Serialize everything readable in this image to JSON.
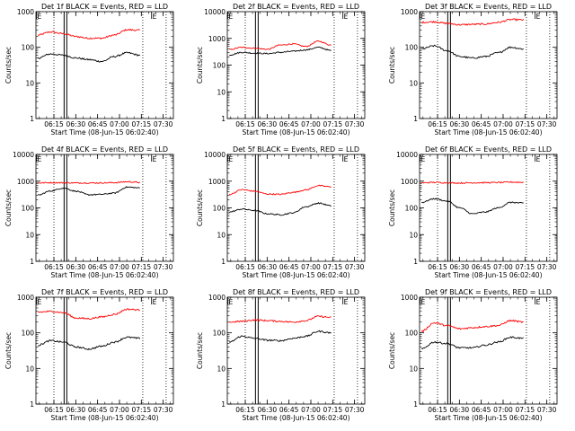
{
  "chart_data": [
    {
      "type": "line",
      "title": "Det 1f BLACK = Events, RED = LLD",
      "xlabel": "Start Time (08-Jun-15 06:02:40)",
      "ylabel": "Counts/sec",
      "yscale": "log",
      "ylim": [
        1,
        1000
      ],
      "x_ticks": [
        "06:15",
        "06:30",
        "06:45",
        "07:00",
        "07:15",
        "07:30"
      ],
      "y_ticks": [
        "1",
        "10",
        "100",
        "1000"
      ],
      "markers": {
        "dotted": [
          "06:15",
          "07:16",
          "07:32"
        ],
        "thick": [
          "06:22"
        ],
        "E_labels": [
          "06:03",
          "07:22"
        ]
      },
      "series": [
        {
          "color": "#ff0000",
          "values": [
            220,
            270,
            240,
            200,
            180,
            180,
            220,
            310,
            300
          ]
        },
        {
          "color": "#000000",
          "values": [
            50,
            65,
            60,
            50,
            45,
            40,
            55,
            70,
            60
          ]
        }
      ]
    },
    {
      "type": "line",
      "title": "Det 2f BLACK = Events, RED = LLD",
      "xlabel": "Start Time (08-Jun-15 06:02:40)",
      "ylabel": "Counts/sec",
      "yscale": "log",
      "ylim": [
        1,
        10000
      ],
      "x_ticks": [
        "06:15",
        "06:30",
        "06:45",
        "07:00",
        "07:15",
        "07:30"
      ],
      "y_ticks": [
        "1",
        "10",
        "100",
        "1000",
        "10000"
      ],
      "markers": {
        "dotted": [
          "06:15",
          "07:16",
          "07:32"
        ],
        "thick": [
          "06:22"
        ],
        "E_labels": [
          "06:03",
          "07:22"
        ]
      },
      "series": [
        {
          "color": "#ff0000",
          "values": [
            380,
            460,
            430,
            390,
            560,
            620,
            500,
            780,
            560
          ]
        },
        {
          "color": "#000000",
          "values": [
            240,
            300,
            280,
            270,
            300,
            330,
            370,
            460,
            350
          ]
        }
      ]
    },
    {
      "type": "line",
      "title": "Det 3f BLACK = Events, RED = LLD",
      "xlabel": "Start Time (08-Jun-15 06:02:40)",
      "ylabel": "Counts/sec",
      "yscale": "log",
      "ylim": [
        1,
        1000
      ],
      "x_ticks": [
        "06:15",
        "06:30",
        "06:45",
        "07:00",
        "07:15",
        "07:30"
      ],
      "y_ticks": [
        "1",
        "10",
        "100",
        "1000"
      ],
      "markers": {
        "dotted": [
          "06:15",
          "07:16",
          "07:32"
        ],
        "thick": [
          "06:22"
        ],
        "E_labels": [
          "06:03",
          "07:22"
        ]
      },
      "series": [
        {
          "color": "#ff0000",
          "values": [
            500,
            520,
            470,
            430,
            440,
            450,
            500,
            600,
            590
          ]
        },
        {
          "color": "#000000",
          "values": [
            90,
            110,
            80,
            55,
            50,
            55,
            70,
            100,
            90
          ]
        }
      ]
    },
    {
      "type": "line",
      "title": "Det 4f BLACK = Events, RED = LLD",
      "xlabel": "Start Time (08-Jun-15 06:02:40)",
      "ylabel": "Counts/sec",
      "yscale": "log",
      "ylim": [
        1,
        10000
      ],
      "x_ticks": [
        "06:15",
        "06:30",
        "06:45",
        "07:00",
        "07:15",
        "07:30"
      ],
      "y_ticks": [
        "1",
        "10",
        "100",
        "1000",
        "10000"
      ],
      "markers": {
        "dotted": [
          "06:15",
          "07:16",
          "07:32"
        ],
        "thick": [
          "06:22"
        ],
        "E_labels": [
          "06:03",
          "07:22"
        ]
      },
      "series": [
        {
          "color": "#ff0000",
          "values": [
            860,
            880,
            870,
            860,
            860,
            860,
            880,
            950,
            900
          ]
        },
        {
          "color": "#000000",
          "values": [
            300,
            430,
            550,
            420,
            310,
            320,
            360,
            600,
            560
          ]
        }
      ]
    },
    {
      "type": "line",
      "title": "Det 5f BLACK = Events, RED = LLD",
      "xlabel": "Start Time (08-Jun-15 06:02:40)",
      "ylabel": "Counts/sec",
      "yscale": "log",
      "ylim": [
        1,
        10000
      ],
      "x_ticks": [
        "06:15",
        "06:30",
        "06:45",
        "07:00",
        "07:15",
        "07:30"
      ],
      "y_ticks": [
        "1",
        "10",
        "100",
        "1000",
        "10000"
      ],
      "markers": {
        "dotted": [
          "06:15",
          "07:16",
          "07:32"
        ],
        "thick": [
          "06:22"
        ],
        "E_labels": [
          "06:03",
          "07:22"
        ]
      },
      "series": [
        {
          "color": "#ff0000",
          "values": [
            320,
            480,
            420,
            330,
            320,
            380,
            470,
            680,
            610
          ]
        },
        {
          "color": "#000000",
          "values": [
            70,
            90,
            80,
            60,
            55,
            65,
            110,
            150,
            120
          ]
        }
      ]
    },
    {
      "type": "line",
      "title": "Det 6f BLACK = Events, RED = LLD",
      "xlabel": "Start Time (08-Jun-15 06:02:40)",
      "ylabel": "Counts/sec",
      "yscale": "log",
      "ylim": [
        1,
        10000
      ],
      "x_ticks": [
        "06:15",
        "06:30",
        "06:45",
        "07:00",
        "07:15",
        "07:30"
      ],
      "y_ticks": [
        "1",
        "10",
        "100",
        "1000",
        "10000"
      ],
      "markers": {
        "dotted": [
          "06:15",
          "07:16",
          "07:32"
        ],
        "thick": [
          "06:22"
        ],
        "E_labels": [
          "06:03",
          "07:22"
        ]
      },
      "series": [
        {
          "color": "#ff0000",
          "values": [
            860,
            900,
            870,
            850,
            870,
            880,
            890,
            920,
            900
          ]
        },
        {
          "color": "#000000",
          "values": [
            160,
            220,
            180,
            100,
            60,
            70,
            100,
            160,
            150
          ]
        }
      ]
    },
    {
      "type": "line",
      "title": "Det 7f BLACK = Events, RED = LLD",
      "xlabel": "Start Time (08-Jun-15 06:02:40)",
      "ylabel": "Counts/sec",
      "yscale": "log",
      "ylim": [
        1,
        1000
      ],
      "x_ticks": [
        "06:15",
        "06:30",
        "06:45",
        "07:00",
        "07:15",
        "07:30"
      ],
      "y_ticks": [
        "1",
        "10",
        "100",
        "1000"
      ],
      "markers": {
        "dotted": [
          "06:15",
          "07:16",
          "07:32"
        ],
        "thick": [
          "06:22"
        ],
        "E_labels": [
          "06:03",
          "07:22"
        ]
      },
      "series": [
        {
          "color": "#ff0000",
          "values": [
            380,
            400,
            370,
            260,
            250,
            280,
            330,
            460,
            440
          ]
        },
        {
          "color": "#000000",
          "values": [
            45,
            60,
            55,
            40,
            35,
            42,
            55,
            75,
            70
          ]
        }
      ]
    },
    {
      "type": "line",
      "title": "Det 8f BLACK = Events, RED = LLD",
      "xlabel": "Start Time (08-Jun-15 06:02:40)",
      "ylabel": "Counts/sec",
      "yscale": "log",
      "ylim": [
        1,
        1000
      ],
      "x_ticks": [
        "06:15",
        "06:30",
        "06:45",
        "07:00",
        "07:15",
        "07:30"
      ],
      "y_ticks": [
        "1",
        "10",
        "100",
        "1000"
      ],
      "markers": {
        "dotted": [
          "06:15",
          "07:16",
          "07:32"
        ],
        "thick": [
          "06:22"
        ],
        "E_labels": [
          "06:03",
          "07:22"
        ]
      },
      "series": [
        {
          "color": "#ff0000",
          "values": [
            200,
            210,
            230,
            220,
            210,
            200,
            220,
            290,
            270
          ]
        },
        {
          "color": "#000000",
          "values": [
            55,
            80,
            70,
            62,
            60,
            70,
            80,
            110,
            100
          ]
        }
      ]
    },
    {
      "type": "line",
      "title": "Det 9f BLACK = Events, RED = LLD",
      "xlabel": "Start Time (08-Jun-15 06:02:40)",
      "ylabel": "Counts/sec",
      "yscale": "log",
      "ylim": [
        1,
        1000
      ],
      "x_ticks": [
        "06:15",
        "06:30",
        "06:45",
        "07:00",
        "07:15",
        "07:30"
      ],
      "y_ticks": [
        "1",
        "10",
        "100",
        "1000"
      ],
      "markers": {
        "dotted": [
          "06:15",
          "07:16",
          "07:32"
        ],
        "thick": [
          "06:22"
        ],
        "E_labels": [
          "06:03",
          "07:22"
        ]
      },
      "series": [
        {
          "color": "#ff0000",
          "values": [
            110,
            190,
            160,
            130,
            140,
            150,
            160,
            220,
            200
          ]
        },
        {
          "color": "#000000",
          "values": [
            35,
            55,
            50,
            38,
            38,
            45,
            55,
            75,
            70
          ]
        }
      ]
    }
  ]
}
